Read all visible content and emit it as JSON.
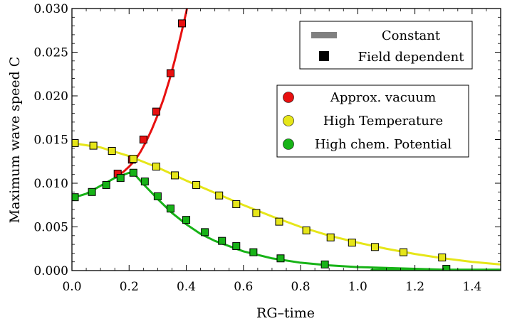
{
  "chart_data": {
    "type": "line",
    "xlabel": "RG–time",
    "ylabel": "Maximum wave speed C",
    "xlim": [
      0.0,
      1.5
    ],
    "ylim": [
      0.0,
      0.03
    ],
    "x_ticks": [
      "0.0",
      "0.2",
      "0.4",
      "0.6",
      "0.8",
      "1.0",
      "1.2",
      "1.4"
    ],
    "y_ticks": [
      "0.000",
      "0.005",
      "0.010",
      "0.015",
      "0.020",
      "0.025",
      "0.030"
    ],
    "x_tick_values": [
      0.0,
      0.2,
      0.4,
      0.6,
      0.8,
      1.0,
      1.2,
      1.4
    ],
    "y_tick_values": [
      0.0,
      0.005,
      0.01,
      0.015,
      0.02,
      0.025,
      0.03
    ],
    "grid": false,
    "legends": [
      {
        "placement": "top-right",
        "entries": [
          {
            "label": "Constant",
            "marker": "line",
            "color": "#808080"
          },
          {
            "label": "Field dependent",
            "marker": "square",
            "color": "#000000"
          }
        ]
      },
      {
        "placement": "upper-right",
        "entries": [
          {
            "label": "Approx. vacuum",
            "marker": "circle",
            "color": "#e81010"
          },
          {
            "label": "High Temperature",
            "marker": "circle",
            "color": "#e6e619"
          },
          {
            "label": "High chem. Potential",
            "marker": "circle",
            "color": "#17b317"
          }
        ]
      }
    ],
    "series": [
      {
        "name": "Approx. vacuum",
        "color": "#e81010",
        "curve": {
          "x": [
            0.16,
            0.18,
            0.2,
            0.22,
            0.24,
            0.26,
            0.28,
            0.3,
            0.32,
            0.34,
            0.36,
            0.38,
            0.4,
            0.415
          ],
          "y": [
            0.0109,
            0.0113,
            0.0119,
            0.0126,
            0.0136,
            0.0148,
            0.0162,
            0.0178,
            0.0196,
            0.0217,
            0.0241,
            0.0268,
            0.0296,
            0.032
          ]
        },
        "points": {
          "x": [
            0.16,
            0.21,
            0.25,
            0.295,
            0.345,
            0.385
          ],
          "y": [
            0.0111,
            0.0127,
            0.015,
            0.0182,
            0.0226,
            0.0283
          ]
        }
      },
      {
        "name": "High Temperature",
        "color": "#e6e619",
        "curve": {
          "x": [
            0.0,
            0.1,
            0.2,
            0.3,
            0.4,
            0.5,
            0.6,
            0.7,
            0.8,
            0.9,
            1.0,
            1.1,
            1.2,
            1.3,
            1.4,
            1.5
          ],
          "y": [
            0.0146,
            0.0141,
            0.0131,
            0.0118,
            0.0103,
            0.0089,
            0.0075,
            0.0062,
            0.005,
            0.004,
            0.0032,
            0.0025,
            0.0019,
            0.0014,
            0.001,
            0.0007
          ]
        },
        "points": {
          "x": [
            0.01,
            0.075,
            0.14,
            0.215,
            0.295,
            0.36,
            0.435,
            0.515,
            0.575,
            0.645,
            0.725,
            0.82,
            0.905,
            0.98,
            1.06,
            1.16,
            1.295
          ],
          "y": [
            0.0146,
            0.0143,
            0.0137,
            0.0128,
            0.0119,
            0.0109,
            0.0098,
            0.0086,
            0.0076,
            0.0066,
            0.0056,
            0.0046,
            0.0038,
            0.0032,
            0.0027,
            0.0021,
            0.0015
          ]
        }
      },
      {
        "name": "High chem. Potential",
        "color": "#17b317",
        "curve": {
          "x": [
            0.0,
            0.05,
            0.1,
            0.15,
            0.2,
            0.22,
            0.25,
            0.3,
            0.35,
            0.4,
            0.45,
            0.5,
            0.6,
            0.7,
            0.8,
            0.9,
            1.0,
            1.1,
            1.2,
            1.3,
            1.4,
            1.5
          ],
          "y": [
            0.0083,
            0.0088,
            0.0097,
            0.0106,
            0.0112,
            0.011,
            0.0099,
            0.0082,
            0.0066,
            0.0053,
            0.0042,
            0.0034,
            0.0022,
            0.0014,
            0.0009,
            0.0006,
            0.0004,
            0.0003,
            0.0002,
            0.0001,
            0.0001,
            0.0001
          ]
        },
        "points": {
          "x": [
            0.01,
            0.07,
            0.12,
            0.17,
            0.215,
            0.255,
            0.3,
            0.345,
            0.4,
            0.465,
            0.525,
            0.575,
            0.635,
            0.73,
            0.885,
            1.31
          ],
          "y": [
            0.0084,
            0.009,
            0.0098,
            0.0106,
            0.0112,
            0.0102,
            0.0085,
            0.0071,
            0.0058,
            0.0044,
            0.0034,
            0.0028,
            0.0021,
            0.0014,
            0.0007,
            0.0002
          ]
        }
      },
      {
        "name": "Constant",
        "color": "#17b317",
        "curve": {
          "x": [
            1.05,
            1.5
          ],
          "y": [
            0.0,
            0.0
          ]
        }
      }
    ]
  }
}
